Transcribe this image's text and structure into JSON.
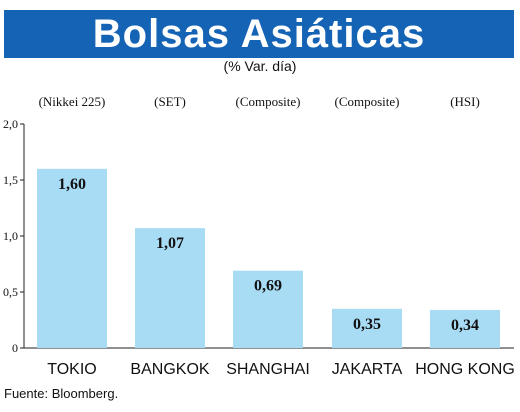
{
  "chart_data": {
    "type": "bar",
    "title": "Bolsas Asiáticas",
    "subtitle": "(% Var. día)",
    "categories": [
      "TOKIO",
      "BANGKOK",
      "SHANGHAI",
      "JAKARTA",
      "HONG KONG"
    ],
    "indices": [
      "(Nikkei 225)",
      "(SET)",
      "(Composite)",
      "(Composite)",
      "(HSI)"
    ],
    "values": [
      1.6,
      1.07,
      0.69,
      0.35,
      0.34
    ],
    "value_labels": [
      "1,60",
      "1,07",
      "0,69",
      "0,35",
      "0,34"
    ],
    "yticks": [
      0,
      0.5,
      1.0,
      1.5,
      2.0
    ],
    "ytick_labels": [
      "0",
      "0,5",
      "1,0",
      "1,5",
      "2,0"
    ],
    "ylim": [
      0,
      2.0
    ],
    "grid": false,
    "source": "Fuente: Bloomberg.",
    "colors": {
      "title_bg": "#1463b5",
      "bar": "#a8dcf4"
    }
  }
}
